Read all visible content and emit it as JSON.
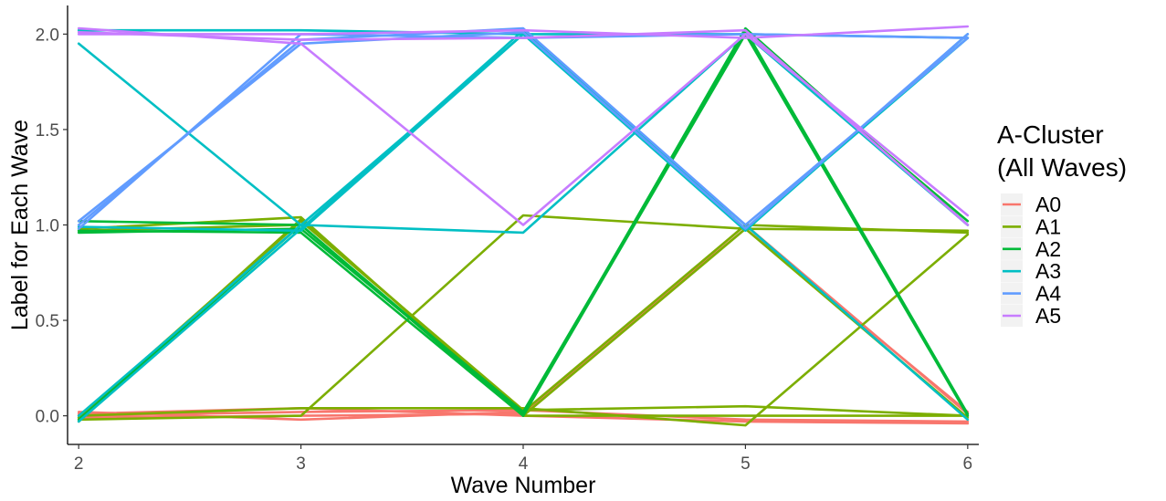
{
  "chart_data": {
    "type": "line",
    "xlabel": "Wave Number",
    "ylabel": "Label for Each Wave",
    "xlim": [
      1.95,
      6.05
    ],
    "ylim": [
      -0.15,
      2.15
    ],
    "x_ticks": [
      2,
      3,
      4,
      5,
      6
    ],
    "y_ticks": [
      0.0,
      0.5,
      1.0,
      1.5,
      2.0
    ],
    "y_tick_labels": [
      "0.0",
      "0.5",
      "1.0",
      "1.5",
      "2.0"
    ],
    "grid": false,
    "legend": {
      "title_lines": [
        "A-Cluster",
        "(All Waves)"
      ],
      "placement": "right"
    },
    "x": [
      2,
      3,
      4,
      5,
      6
    ],
    "series": [
      {
        "name": "A0",
        "color": "#F8766D",
        "lines": [
          [
            0.0,
            0.02,
            0.03,
            -0.02,
            -0.03
          ],
          [
            0.01,
            0.04,
            0.0,
            -0.03,
            -0.04
          ],
          [
            0.02,
            -0.02,
            0.02,
            0.98,
            0.02
          ],
          [
            -0.01,
            0.0,
            0.01,
            1.0,
            0.01
          ]
        ]
      },
      {
        "name": "A1",
        "color": "#7CAE00",
        "lines": [
          [
            0.97,
            1.0,
            0.0,
            0.0,
            0.0
          ],
          [
            -0.03,
            1.03,
            0.02,
            1.0,
            0.96
          ],
          [
            0.98,
            1.04,
            0.0,
            0.98,
            -0.01
          ],
          [
            -0.02,
            0.0,
            1.05,
            0.98,
            0.97
          ],
          [
            0.0,
            0.04,
            0.04,
            -0.05,
            0.95
          ],
          [
            -0.01,
            1.02,
            0.03,
            0.05,
            0.0
          ]
        ]
      },
      {
        "name": "A2",
        "color": "#00BA38",
        "lines": [
          [
            1.02,
            1.0,
            0.0,
            2.03,
            1.0
          ],
          [
            0.96,
            0.98,
            0.02,
            2.0,
            1.02
          ],
          [
            -0.02,
            1.0,
            0.01,
            2.02,
            0.01
          ],
          [
            0.97,
            0.96,
            0.0,
            2.0,
            0.0
          ]
        ]
      },
      {
        "name": "A3",
        "color": "#00BFC4",
        "lines": [
          [
            1.95,
            1.0,
            0.96,
            2.0,
            1.98
          ],
          [
            -0.03,
            0.98,
            2.02,
            0.98,
            1.98
          ],
          [
            0.99,
            0.97,
            2.0,
            0.97,
            2.0
          ],
          [
            0.0,
            1.0,
            2.0,
            1.0,
            -0.02
          ],
          [
            2.02,
            2.02,
            2.0,
            2.0,
            1.0
          ]
        ]
      },
      {
        "name": "A4",
        "color": "#619CFF",
        "lines": [
          [
            1.0,
            1.97,
            2.03,
            1.0,
            1.98
          ],
          [
            0.98,
            2.0,
            1.98,
            2.0,
            1.98
          ],
          [
            1.02,
            1.95,
            2.01,
            0.98,
            2.0
          ]
        ]
      },
      {
        "name": "A5",
        "color": "#C77CFF",
        "lines": [
          [
            2.03,
            1.95,
            1.0,
            2.0,
            1.05
          ],
          [
            2.0,
            2.0,
            2.02,
            1.98,
            2.04
          ],
          [
            2.01,
            1.97,
            1.98,
            2.02,
            1.0
          ]
        ]
      }
    ]
  }
}
